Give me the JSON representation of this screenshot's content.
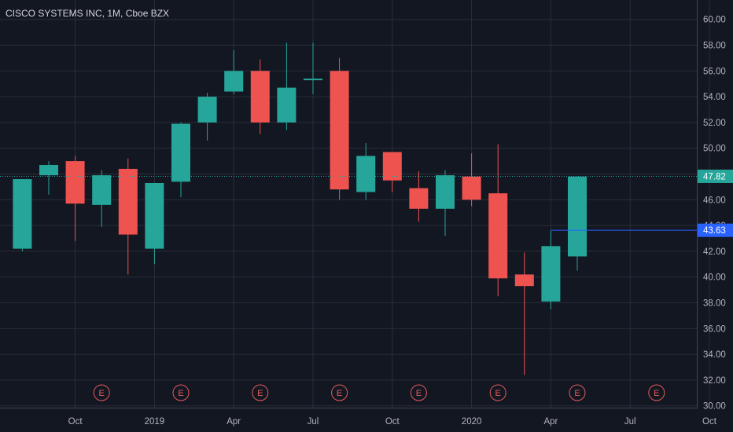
{
  "header": {
    "title": "CISCO SYSTEMS INC, 1M, Cboe BZX"
  },
  "colors": {
    "background": "#131722",
    "grid": "#2a2e39",
    "up": "#26a69a",
    "down": "#ef5350",
    "axis_text": "#b2b5be",
    "price_line": "#26a69a",
    "marker_line": "#2962ff",
    "earnings": "#e55b5b"
  },
  "chart_data": {
    "type": "candlestick",
    "title": "CISCO SYSTEMS INC, 1M, Cboe BZX",
    "y_axis": {
      "ticks": [
        "60.00",
        "58.00",
        "56.00",
        "54.00",
        "52.00",
        "50.00",
        "48.00",
        "46.00",
        "44.00",
        "42.00",
        "40.00",
        "38.00",
        "36.00",
        "34.00",
        "32.00",
        "30.00"
      ],
      "ylim": [
        30,
        61.5
      ]
    },
    "x_axis": {
      "labels": [
        {
          "label": "Oct",
          "month": "2018-10"
        },
        {
          "label": "2019",
          "month": "2019-01"
        },
        {
          "label": "Apr",
          "month": "2019-04"
        },
        {
          "label": "Jul",
          "month": "2019-07"
        },
        {
          "label": "Oct",
          "month": "2019-10"
        },
        {
          "label": "2020",
          "month": "2020-01"
        },
        {
          "label": "Apr",
          "month": "2020-04"
        },
        {
          "label": "Jul",
          "month": "2020-07"
        },
        {
          "label": "Oct",
          "month": "2020-10"
        }
      ]
    },
    "candles": [
      {
        "month": "2018-08",
        "open": 42.2,
        "high": 47.6,
        "low": 42.0,
        "close": 47.6
      },
      {
        "month": "2018-09",
        "open": 47.9,
        "high": 49.0,
        "low": 46.4,
        "close": 48.7
      },
      {
        "month": "2018-10",
        "open": 49.0,
        "high": 49.4,
        "low": 42.8,
        "close": 45.7
      },
      {
        "month": "2018-11",
        "open": 45.6,
        "high": 48.3,
        "low": 43.9,
        "close": 47.9
      },
      {
        "month": "2018-12",
        "open": 48.4,
        "high": 49.2,
        "low": 40.2,
        "close": 43.3
      },
      {
        "month": "2019-01",
        "open": 42.2,
        "high": 47.3,
        "low": 41.0,
        "close": 47.3
      },
      {
        "month": "2019-02",
        "open": 47.4,
        "high": 52.0,
        "low": 46.2,
        "close": 51.9
      },
      {
        "month": "2019-03",
        "open": 52.0,
        "high": 54.3,
        "low": 50.6,
        "close": 54.0
      },
      {
        "month": "2019-04",
        "open": 54.4,
        "high": 57.6,
        "low": 54.2,
        "close": 56.0
      },
      {
        "month": "2019-05",
        "open": 56.0,
        "high": 56.9,
        "low": 51.1,
        "close": 52.0
      },
      {
        "month": "2019-06",
        "open": 52.0,
        "high": 58.2,
        "low": 51.4,
        "close": 54.7
      },
      {
        "month": "2019-07",
        "open": 55.3,
        "high": 58.2,
        "low": 54.2,
        "close": 55.4
      },
      {
        "month": "2019-08",
        "open": 56.0,
        "high": 57.0,
        "low": 46.0,
        "close": 46.8
      },
      {
        "month": "2019-09",
        "open": 46.6,
        "high": 50.4,
        "low": 46.0,
        "close": 49.4
      },
      {
        "month": "2019-10",
        "open": 49.7,
        "high": 49.7,
        "low": 46.6,
        "close": 47.5
      },
      {
        "month": "2019-11",
        "open": 46.9,
        "high": 48.2,
        "low": 44.3,
        "close": 45.3
      },
      {
        "month": "2019-12",
        "open": 45.3,
        "high": 48.3,
        "low": 43.2,
        "close": 47.9
      },
      {
        "month": "2020-01",
        "open": 47.8,
        "high": 49.6,
        "low": 45.5,
        "close": 46.0
      },
      {
        "month": "2020-02",
        "open": 46.5,
        "high": 50.3,
        "low": 38.5,
        "close": 39.9
      },
      {
        "month": "2020-03",
        "open": 40.2,
        "high": 41.9,
        "low": 32.4,
        "close": 39.3
      },
      {
        "month": "2020-04",
        "open": 38.1,
        "high": 43.6,
        "low": 37.5,
        "close": 42.4
      },
      {
        "month": "2020-05",
        "open": 41.6,
        "high": 47.8,
        "low": 40.5,
        "close": 47.8
      }
    ],
    "last_price": {
      "value": 47.82,
      "label": "47.82",
      "color": "#26a69a"
    },
    "marker": {
      "value": 43.63,
      "label": "43.63",
      "from_month": "2020-04",
      "color": "#2962ff"
    },
    "earnings": [
      {
        "month": "2018-11",
        "label": "E"
      },
      {
        "month": "2019-02",
        "label": "E"
      },
      {
        "month": "2019-05",
        "label": "E"
      },
      {
        "month": "2019-08",
        "label": "E"
      },
      {
        "month": "2019-11",
        "label": "E"
      },
      {
        "month": "2020-02",
        "label": "E"
      },
      {
        "month": "2020-05",
        "label": "E"
      },
      {
        "month": "2020-08",
        "label": "E"
      }
    ],
    "grid": true
  }
}
